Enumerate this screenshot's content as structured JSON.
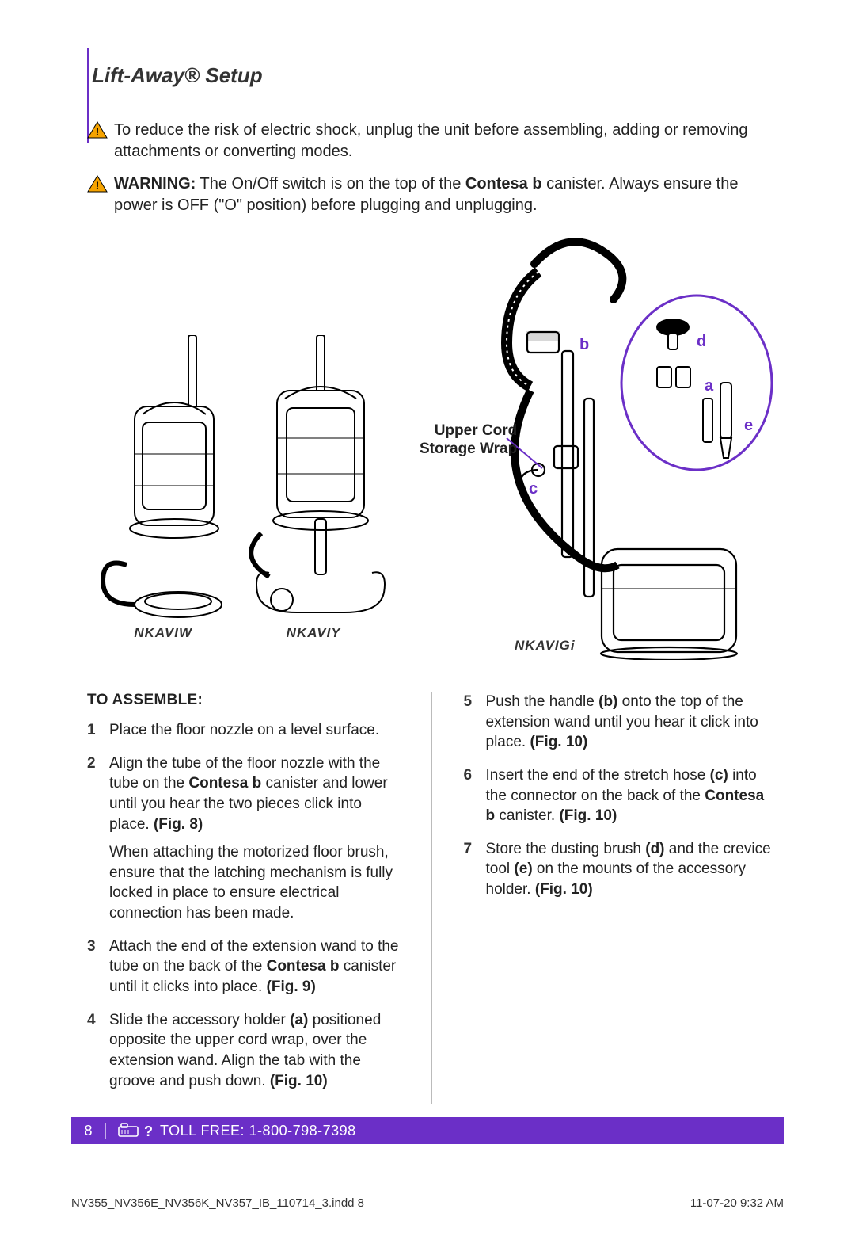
{
  "title": "Lift-Away® Setup",
  "warnings": [
    {
      "prefix": "",
      "text": "To reduce the risk of electric shock, unplug the unit before assembling, adding or removing attachments or converting modes."
    },
    {
      "prefix": "WARNING:",
      "text_a": " The On/Off switch is on the top of the ",
      "bold1": "Contesa b",
      "text_b": " canister. Always ensure the power is OFF (\"O\" position) before plugging and unplugging."
    }
  ],
  "figures": {
    "fig8": "NKAVIW",
    "fig9": "NKAVIY",
    "fig10": "NKAVIGi",
    "cord_label_1": "Upper Cord",
    "cord_label_2": "Storage Wrap",
    "letters": {
      "a": "a",
      "b": "b",
      "c": "c",
      "d": "d",
      "e": "e"
    }
  },
  "assemble_heading": "TO ASSEMBLE:",
  "steps_left": [
    {
      "n": "1",
      "html": "Place the floor nozzle on a level surface."
    },
    {
      "n": "2",
      "html": "Align the tube of the floor nozzle with the tube on the <b>Contesa b</b> canister and lower until you hear the two pieces click into place. <b>(Fig. 8)</b>",
      "note": "When attaching the motorized floor brush, ensure that the latching mechanism is fully locked in place to ensure electrical connection has been made."
    },
    {
      "n": "3",
      "html": "Attach the end of the extension wand to the tube on the back of the <b>Contesa b</b> canister until it clicks into place. <b>(Fig. 9)</b>"
    },
    {
      "n": "4",
      "html": "Slide the accessory holder <b>(a)</b> positioned opposite the upper cord wrap, over the extension wand. Align the tab with the groove and push down. <b>(Fig. 10)</b>"
    }
  ],
  "steps_right": [
    {
      "n": "5",
      "html": "Push the handle <b>(b)</b> onto the top of the extension wand until you hear it click into place. <b>(Fig. 10)</b>"
    },
    {
      "n": "6",
      "html": "Insert the end of the stretch hose <b>(c)</b> into the connector on the back of the <b>Contesa b</b> canister. <b>(Fig. 10)</b>"
    },
    {
      "n": "7",
      "html": "Store the dusting brush <b>(d)</b> and the crevice tool <b>(e)</b> on the mounts of the accessory holder. <b>(Fig. 10)</b>"
    }
  ],
  "footer": {
    "page": "8",
    "toll_label": "TOLL FREE: ",
    "toll_number": "1-800-798-7398"
  },
  "print": {
    "file": "NV355_NV356E_NV356K_NV357_IB_110714_3.indd   8",
    "stamp": "11-07-20   9:32 AM"
  },
  "colors": {
    "accent": "#6b2fc7",
    "warn_fill": "#f5a300",
    "warn_stroke": "#000"
  }
}
